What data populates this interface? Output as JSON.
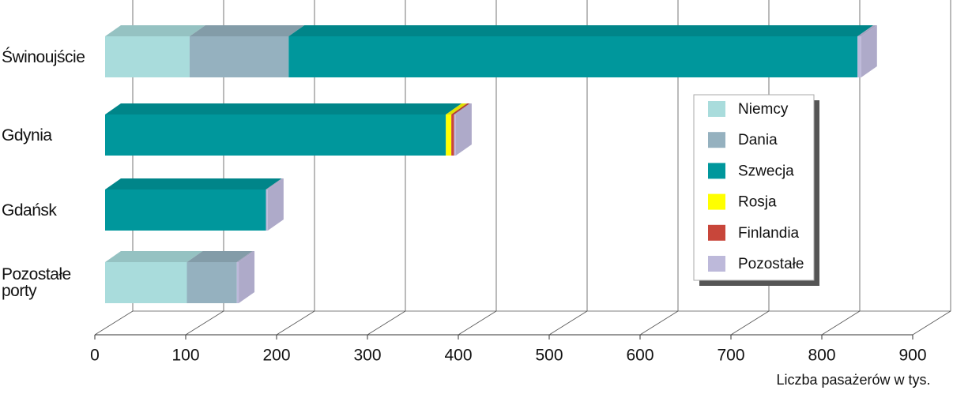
{
  "chart_data": {
    "type": "bar",
    "orientation": "horizontal",
    "stacked": true,
    "x_label": "Liczba pasażerów w tys.",
    "categories": [
      "Świnoujście",
      "Gdynia",
      "Gdańsk",
      "Pozostałe porty"
    ],
    "series": [
      {
        "name": "Niemcy",
        "color": "#a9dcdc",
        "values": [
          93,
          0,
          0,
          90
        ]
      },
      {
        "name": "Dania",
        "color": "#95b1bf",
        "values": [
          109,
          0,
          0,
          55
        ]
      },
      {
        "name": "Szwecja",
        "color": "#00979c",
        "values": [
          626,
          375,
          177,
          0
        ]
      },
      {
        "name": "Rosja",
        "color": "#ffff00",
        "values": [
          0,
          6,
          0,
          0
        ]
      },
      {
        "name": "Finlandia",
        "color": "#c8463a",
        "values": [
          0,
          3,
          0,
          0
        ]
      },
      {
        "name": "Pozostałe",
        "color": "#bdb9da",
        "values": [
          4,
          2,
          2,
          2
        ]
      }
    ],
    "xlim": [
      0,
      900
    ],
    "xticks": [
      0,
      100,
      200,
      300,
      400,
      500,
      600,
      700,
      800,
      900
    ],
    "grid": true
  }
}
